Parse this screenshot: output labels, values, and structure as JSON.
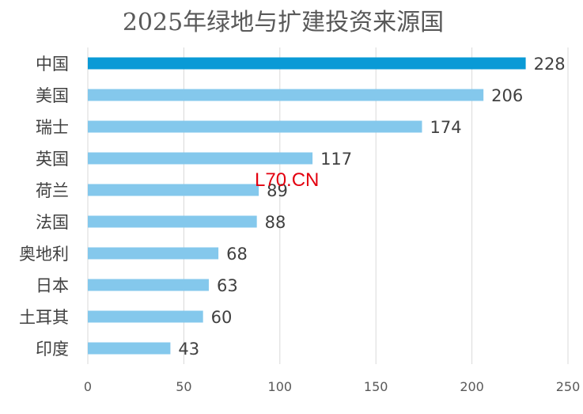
{
  "watermark": "L70.CN",
  "colors": {
    "highlight_bar": "#0a9ad6",
    "bar": "#84c8ec",
    "gridline": "#d9d9d9",
    "text": "#404040",
    "title": "#595959",
    "watermark": "#e3000f"
  },
  "chart_data": {
    "type": "bar",
    "orientation": "horizontal",
    "title": "2025年绿地与扩建投资来源国",
    "xlabel": "",
    "ylabel": "",
    "categories": [
      "中国",
      "美国",
      "瑞士",
      "英国",
      "荷兰",
      "法国",
      "奥地利",
      "日本",
      "土耳其",
      "印度"
    ],
    "values": [
      228,
      206,
      174,
      117,
      89,
      88,
      68,
      63,
      60,
      43
    ],
    "data_labels": [
      "228",
      "206",
      "174",
      "117",
      "89",
      "88",
      "68",
      "63",
      "60",
      "43"
    ],
    "highlight_index": 0,
    "xlim": [
      0,
      250
    ],
    "x_ticks": [
      0,
      50,
      100,
      150,
      200,
      250
    ],
    "x_tick_labels": [
      "0",
      "50",
      "100",
      "150",
      "200",
      "250"
    ],
    "grid": "vertical",
    "legend": "none"
  }
}
